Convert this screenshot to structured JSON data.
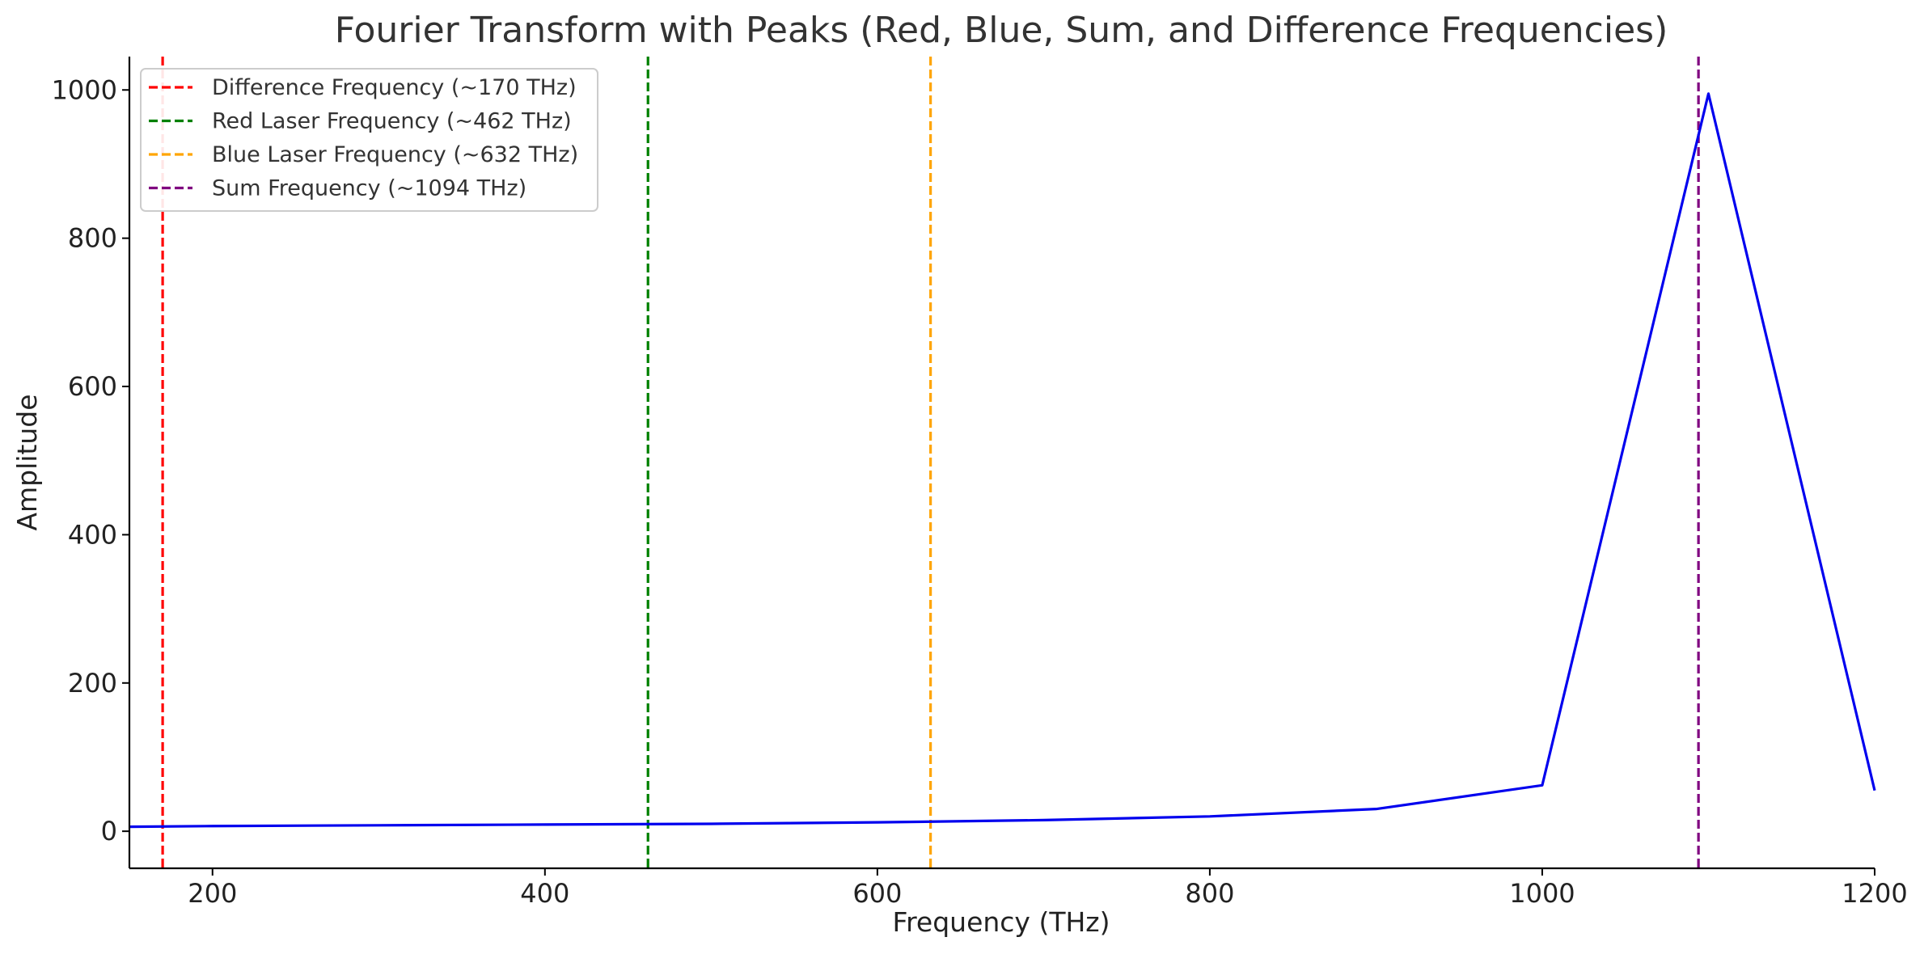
{
  "chart_data": {
    "type": "line",
    "title": "Fourier Transform with Peaks (Red, Blue, Sum, and Difference Frequencies)",
    "xlabel": "Frequency (THz)",
    "ylabel": "Amplitude",
    "xlim": [
      150,
      1200
    ],
    "ylim": [
      -50,
      1045
    ],
    "x_ticks": [
      200,
      400,
      600,
      800,
      1000,
      1200
    ],
    "y_ticks": [
      0,
      200,
      400,
      600,
      800,
      1000
    ],
    "grid": false,
    "legend_position": "top-left",
    "series": [
      {
        "color": "#0000ee",
        "x": [
          150,
          200,
          300,
          400,
          500,
          600,
          700,
          800,
          900,
          1000,
          1100,
          1200
        ],
        "y": [
          6,
          7,
          8,
          9,
          10,
          12,
          15,
          20,
          30,
          62,
          995,
          55
        ]
      }
    ],
    "vlines": [
      {
        "label": "Difference Frequency (~170 THz)",
        "x": 170,
        "color": "#ff0000"
      },
      {
        "label": "Red Laser Frequency (~462 THz)",
        "x": 462,
        "color": "#008000"
      },
      {
        "label": "Blue Laser Frequency (~632 THz)",
        "x": 632,
        "color": "#ffa500"
      },
      {
        "label": "Sum Frequency (~1094 THz)",
        "x": 1094,
        "color": "#800080"
      }
    ]
  }
}
